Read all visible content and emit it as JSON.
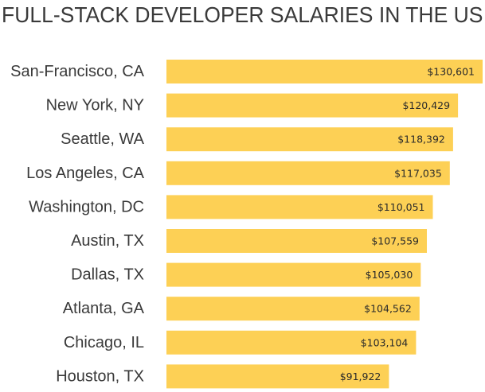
{
  "chart_data": {
    "type": "bar",
    "orientation": "horizontal",
    "title": "FULL-STACK DEVELOPER SALARIES IN THE US",
    "categories": [
      "San-Francisco, CA",
      "New York, NY",
      "Seattle, WA",
      "Los Angeles, CA",
      "Washington, DC",
      "Austin, TX",
      "Dallas, TX",
      "Atlanta, GA",
      "Chicago, IL",
      "Houston, TX"
    ],
    "values": [
      130601,
      120429,
      118392,
      117035,
      110051,
      107559,
      105030,
      104562,
      103104,
      91922
    ],
    "value_labels": [
      "$130,601",
      "$120,429",
      "$118,392",
      "$117,035",
      "$110,051",
      "$107,559",
      "$105,030",
      "$104,562",
      "$103,104",
      "$91,922"
    ],
    "xlabel": "",
    "ylabel": "",
    "xlim": [
      0,
      130601
    ],
    "grid": false,
    "legend": "none",
    "colors": {
      "bar": "#fdd055",
      "text": "#3a3a3a"
    }
  }
}
